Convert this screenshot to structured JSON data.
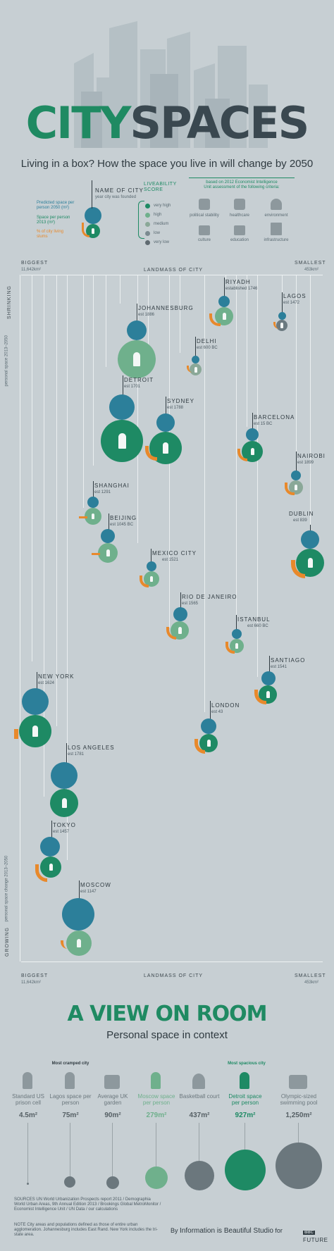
{
  "header": {
    "title_part1": "CITY",
    "title_part2": "SPACES",
    "subtitle": "Living in a box? How the space you live in will change by 2050"
  },
  "legend": {
    "name_of_city": "NAME OF CITY",
    "year_founded": "year city was founded",
    "predicted_space": "Predicted space per person 2050 (m²)",
    "space_2013": "Space per person 2013 (m²)",
    "pct_slums": "% of city living slums",
    "liveability_title": "LIVEABILITY SCORE",
    "liveability_levels": [
      "very high",
      "high",
      "medium",
      "low",
      "very low"
    ],
    "criteria_note": "based on 2012 Economist Intelligence Unit assessment of the following criteria:",
    "criteria": [
      "political stability",
      "healthcare",
      "environment",
      "culture",
      "education",
      "infrastructure"
    ]
  },
  "axis": {
    "biggest": "BIGGEST",
    "biggest_value": "11,642km²",
    "smallest": "SMALLEST",
    "smallest_value": "453km²",
    "landmass": "LANDMASS OF CITY",
    "shrinking": "SHRINKING",
    "growing": "GROWING",
    "left_axis_top": "personal space 2013–2050",
    "left_axis_bottom": "personal space change 2013–2050"
  },
  "cities": [
    {
      "name": "RIYADH",
      "est": "established 1746"
    },
    {
      "name": "LAGOS",
      "est": "est 1472"
    },
    {
      "name": "JOHANNESBURG",
      "est": "est 1886"
    },
    {
      "name": "DELHI",
      "est": "est 600 BC"
    },
    {
      "name": "DETROIT",
      "est": "est 1701"
    },
    {
      "name": "SYDNEY",
      "est": "est 1788"
    },
    {
      "name": "BARCELONA",
      "est": "est 15 BC"
    },
    {
      "name": "NAIROBI",
      "est": "est 1899"
    },
    {
      "name": "SHANGHAI",
      "est": "est 1291"
    },
    {
      "name": "DUBLIN",
      "est": "est 839"
    },
    {
      "name": "BEIJING",
      "est": "est 1045 BC"
    },
    {
      "name": "MEXICO CITY",
      "est": "est 1521"
    },
    {
      "name": "RIO DE JANEIRO",
      "est": "est 1565"
    },
    {
      "name": "ISTANBUL",
      "est": "est 660 BC"
    },
    {
      "name": "SANTIAGO",
      "est": "est 1541"
    },
    {
      "name": "NEW YORK",
      "est": "est 1624"
    },
    {
      "name": "LONDON",
      "est": "est 43"
    },
    {
      "name": "LOS ANGELES",
      "est": "est 1781"
    },
    {
      "name": "TOKYO",
      "est": "est 1457"
    },
    {
      "name": "MOSCOW",
      "est": "est 1147"
    }
  ],
  "room": {
    "title": "A VIEW ON ROOM",
    "subtitle": "Personal space in context",
    "most_cramped": "Most cramped city",
    "most_spacious": "Most spacious city",
    "items": [
      {
        "label": "Standard US prison cell",
        "value": "4.5m²"
      },
      {
        "label": "Lagos space per person",
        "value": "75m²"
      },
      {
        "label": "Average UK garden",
        "value": "90m²"
      },
      {
        "label": "Moscow space per person",
        "value": "279m²"
      },
      {
        "label": "Basketball court",
        "value": "437m²"
      },
      {
        "label": "Detroit space per person",
        "value": "927m²"
      },
      {
        "label": "Olympic-sized swimming pool",
        "value": "1,250m²"
      }
    ]
  },
  "footer": {
    "sources": "SOURCES UN World Urbanization Prospects report 2011 / Demographia World Urban Areas, 9th Annual Edition 2013 / Brookings Global MetroMonitor / Economist Intelligence Unit / UN Data / our calculations",
    "note": "NOTE City areas and populations defined as those of entire urban agglomeration. Johannesburg includes East Rand. New York includes the tri-state area.",
    "credit_prefix": "By",
    "credit": "Information is Beautiful Studio",
    "credit_for": "for",
    "bbc": "BBC",
    "future": "FUTURE"
  },
  "colors": {
    "background": "#c7cfd3",
    "space_2050": "#2c7f9a",
    "space_2013": "#1e8a64",
    "slums": "#e8892b",
    "medium_green": "#6fb08c"
  }
}
